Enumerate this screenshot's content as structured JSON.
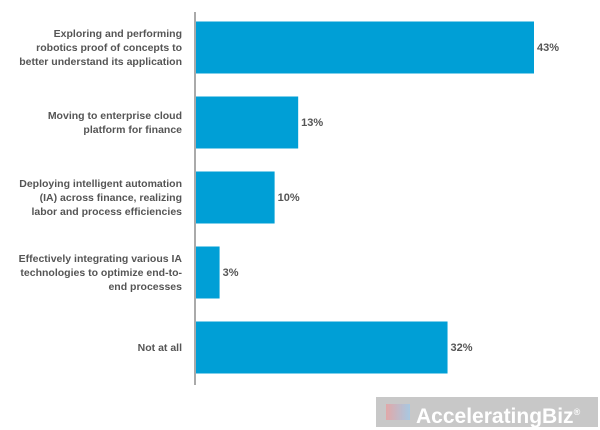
{
  "chart_data": {
    "type": "bar",
    "orientation": "horizontal",
    "categories": [
      "Exploring and performing\nrobotics proof of concepts to\nbetter understand its application",
      "Moving to enterprise cloud\nplatform for finance",
      "Deploying intelligent automation\n(IA) across finance, realizing\nlabor and process efficiencies",
      "Effectively integrating various IA\ntechnologies to optimize end-to-\nend processes",
      "Not at all"
    ],
    "values": [
      43,
      13,
      10,
      3,
      32
    ],
    "value_labels": [
      "43%",
      "13%",
      "10%",
      "3%",
      "32%"
    ],
    "color": "#009fd6"
  },
  "watermark": {
    "text": "AcceleratingBiz",
    "mark": "®"
  }
}
